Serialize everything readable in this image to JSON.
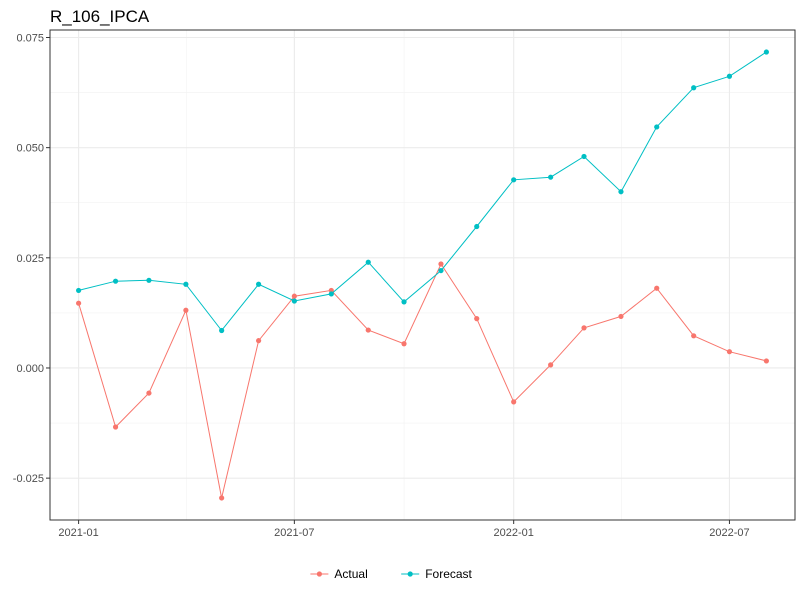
{
  "chart_data": {
    "type": "line",
    "title": "R_106_IPCA",
    "xlabel": "",
    "ylabel": "",
    "x": [
      "2021-01",
      "2021-02",
      "2021-03",
      "2021-04",
      "2021-05",
      "2021-06",
      "2021-07",
      "2021-08",
      "2021-09",
      "2021-10",
      "2021-11",
      "2021-12",
      "2022-01",
      "2022-02",
      "2022-03",
      "2022-04",
      "2022-05",
      "2022-06",
      "2022-07",
      "2022-08"
    ],
    "series": [
      {
        "name": "Actual",
        "color": "#F8766D",
        "values": [
          0.0147,
          -0.0134,
          -0.0057,
          0.0131,
          -0.0295,
          0.0062,
          0.0163,
          0.0176,
          0.0086,
          0.0055,
          0.0236,
          0.0112,
          -0.0077,
          0.0007,
          0.0091,
          0.0117,
          0.0181,
          0.0073,
          0.0037,
          0.0016
        ]
      },
      {
        "name": "Forecast",
        "color": "#00BFC4",
        "values": [
          0.0176,
          0.0197,
          0.0199,
          0.019,
          0.0085,
          0.019,
          0.0152,
          0.0168,
          0.024,
          0.015,
          0.0221,
          0.0321,
          0.0427,
          0.0433,
          0.048,
          0.04,
          0.0547,
          0.0636,
          0.0662,
          0.0717
        ]
      }
    ],
    "yticks": [
      -0.025,
      0.0,
      0.025,
      0.05,
      0.075
    ],
    "ytick_labels": [
      "-0.025",
      "0.000",
      "0.025",
      "0.050",
      "0.075"
    ],
    "xticks": [
      "2021-01",
      "2021-07",
      "2022-01",
      "2022-07"
    ],
    "ylim": [
      -0.0345,
      0.0767
    ],
    "xlim": [
      "2020-12-08",
      "2022-08-25"
    ],
    "grid": true,
    "legend_position": "bottom"
  }
}
